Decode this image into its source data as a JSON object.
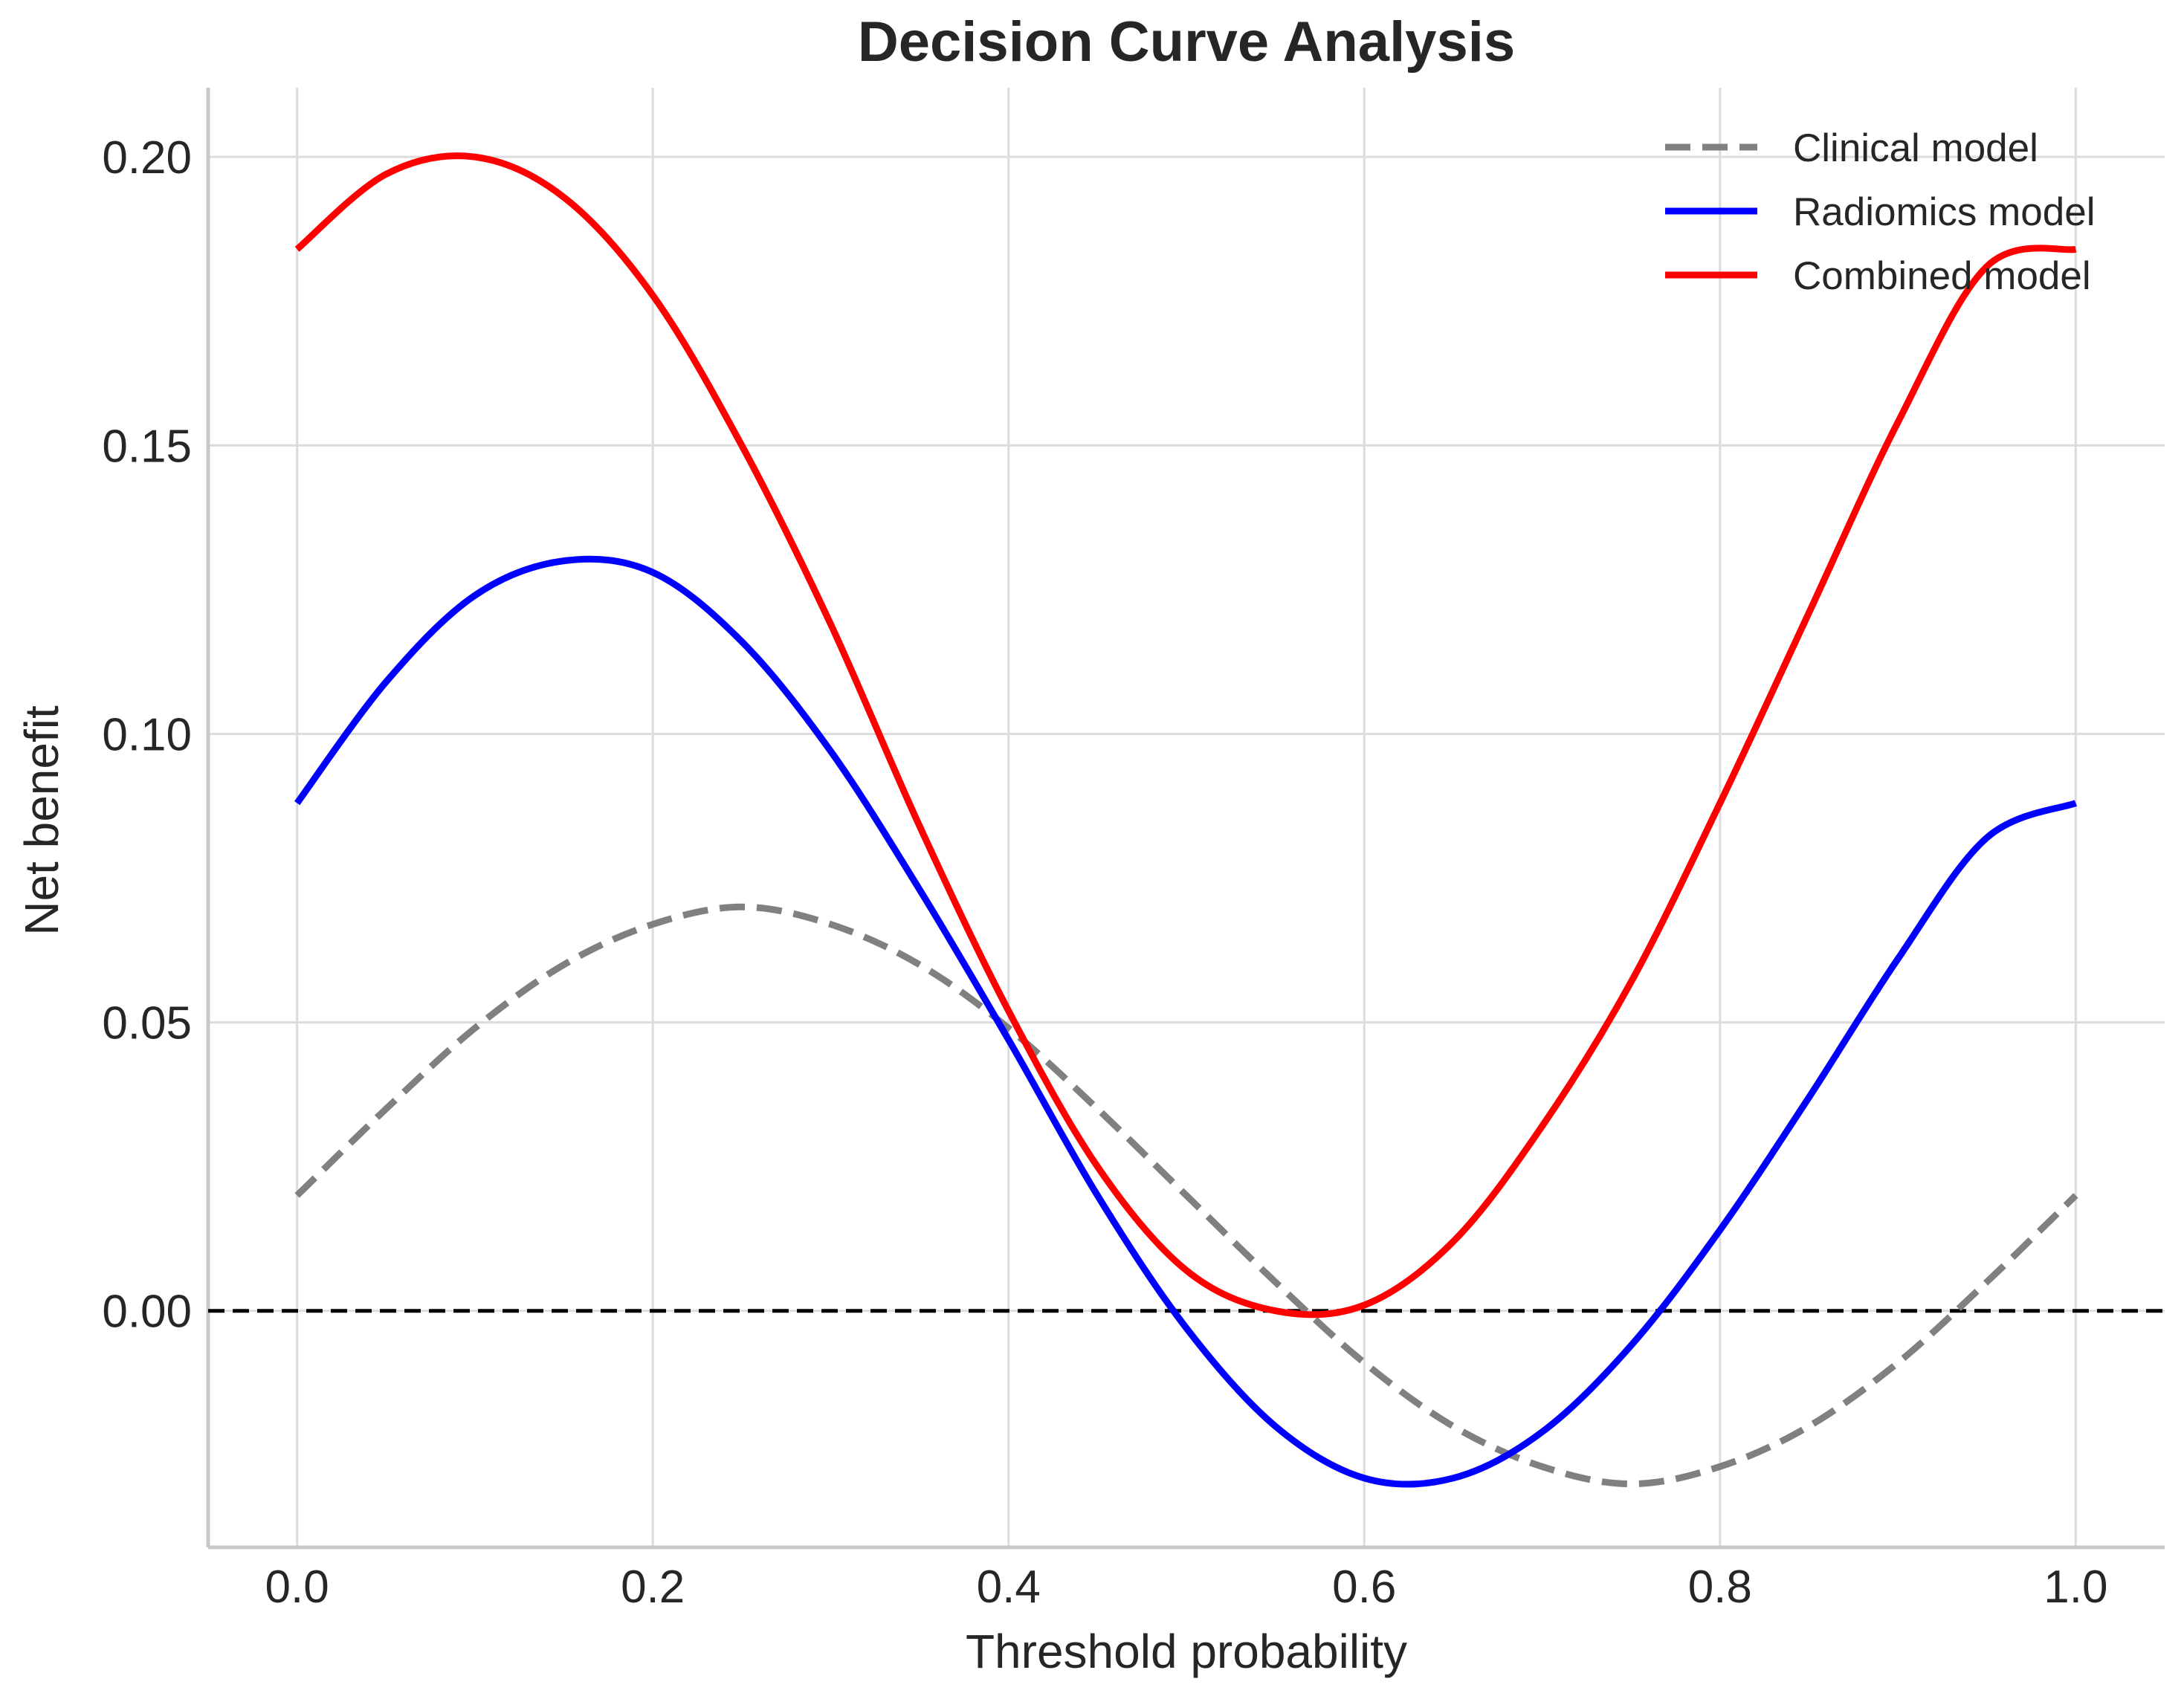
{
  "chart_data": {
    "type": "line",
    "title": "Decision Curve Analysis",
    "xlabel": "Threshold probability",
    "ylabel": "Net benefit",
    "xlim": [
      -0.05,
      1.05
    ],
    "ylim": [
      -0.041,
      0.212
    ],
    "xticks": [
      0.0,
      0.2,
      0.4,
      0.6,
      0.8,
      1.0
    ],
    "xtick_labels": [
      "0.0",
      "0.2",
      "0.4",
      "0.6",
      "0.8",
      "1.0"
    ],
    "yticks": [
      0.0,
      0.05,
      0.1,
      0.15,
      0.2
    ],
    "ytick_labels": [
      "0.00",
      "0.05",
      "0.10",
      "0.15",
      "0.20"
    ],
    "grid": true,
    "legend_position": "top-right",
    "x": [
      0.0,
      0.05,
      0.1,
      0.15,
      0.2,
      0.25,
      0.3,
      0.35,
      0.4,
      0.45,
      0.5,
      0.55,
      0.6,
      0.65,
      0.7,
      0.75,
      0.8,
      0.85,
      0.9,
      0.95,
      1.0
    ],
    "series": [
      {
        "name": "Clinical model",
        "color": "#808080",
        "dashed": true,
        "values": [
          0.02,
          0.035,
          0.049,
          0.06,
          0.067,
          0.07,
          0.067,
          0.06,
          0.049,
          0.035,
          0.02,
          0.005,
          -0.009,
          -0.02,
          -0.027,
          -0.03,
          -0.027,
          -0.02,
          -0.009,
          0.005,
          0.02
        ]
      },
      {
        "name": "Radiomics model",
        "color": "#0000ff",
        "dashed": false,
        "values": [
          0.088,
          0.109,
          0.124,
          0.13,
          0.128,
          0.116,
          0.097,
          0.073,
          0.047,
          0.02,
          -0.003,
          -0.02,
          -0.029,
          -0.029,
          -0.021,
          -0.006,
          0.014,
          0.037,
          0.061,
          0.082,
          0.088
        ]
      },
      {
        "name": "Combined model",
        "color": "#ff0000",
        "dashed": false,
        "values": [
          0.184,
          0.197,
          0.2,
          0.193,
          0.176,
          0.15,
          0.119,
          0.084,
          0.052,
          0.025,
          0.007,
          0.0,
          0.001,
          0.012,
          0.032,
          0.057,
          0.088,
          0.121,
          0.154,
          0.181,
          0.184
        ]
      }
    ],
    "reference_line": {
      "y": 0.0,
      "color": "#000000",
      "dashed": true
    }
  }
}
